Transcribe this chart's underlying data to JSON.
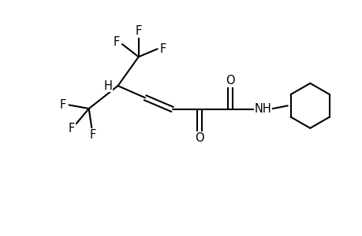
{
  "background_color": "#ffffff",
  "line_color": "#000000",
  "line_width": 1.5,
  "font_size": 10.5,
  "figsize": [
    4.6,
    3.0
  ],
  "dpi": 100,
  "xlim": [
    0,
    10
  ],
  "ylim": [
    0,
    6.52
  ]
}
